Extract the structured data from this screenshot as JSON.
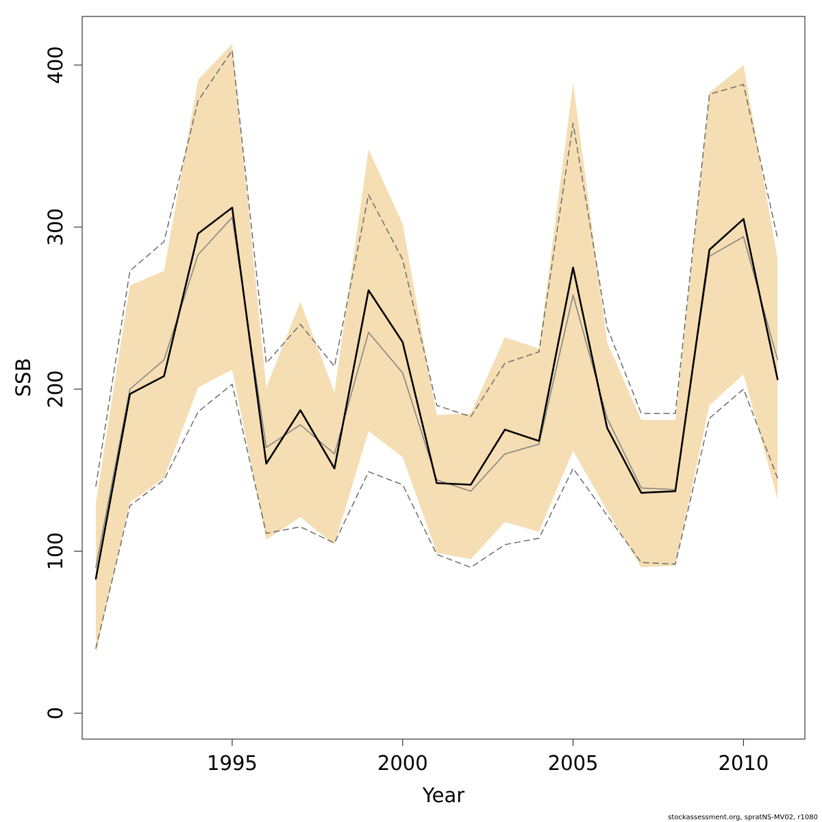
{
  "chart_data": {
    "type": "line",
    "xlabel": "Year",
    "ylabel": "SSB",
    "xlim": [
      1990.6,
      2011.8
    ],
    "ylim": [
      -16,
      430
    ],
    "x_ticks": [
      1995,
      2000,
      2005,
      2010
    ],
    "y_ticks": [
      0,
      100,
      200,
      300,
      400
    ],
    "x_tick_labels": [
      "1995",
      "2000",
      "2005",
      "2010"
    ],
    "y_tick_labels": [
      "0",
      "100",
      "200",
      "300",
      "400"
    ],
    "grid": false,
    "legend": "none",
    "years": [
      1991,
      1992,
      1993,
      1994,
      1995,
      1996,
      1997,
      1998,
      1999,
      2000,
      2001,
      2002,
      2003,
      2004,
      2005,
      2006,
      2007,
      2008,
      2009,
      2010,
      2011
    ],
    "series": [
      {
        "role": "band",
        "style": "filled-area",
        "color": "#f5deb3",
        "upper": [
          130,
          264,
          273,
          391,
          413,
          201,
          254,
          198,
          348,
          302,
          184,
          185,
          232,
          225,
          389,
          229,
          181,
          181,
          383,
          400,
          280
        ],
        "lower": [
          37,
          130,
          145,
          201,
          212,
          107,
          121,
          104,
          174,
          158,
          99,
          95,
          118,
          112,
          162,
          125,
          90,
          91,
          190,
          209,
          132
        ]
      },
      {
        "role": "main",
        "style": "solid-thick",
        "color": "#000000",
        "values": [
          83,
          197,
          208,
          296,
          312,
          154,
          187,
          151,
          261,
          229,
          142,
          141,
          175,
          168,
          275,
          176,
          136,
          137,
          286,
          305,
          206
        ]
      },
      {
        "role": "secondary",
        "style": "solid-thin",
        "color": "#808080",
        "values": [
          90,
          200,
          218,
          283,
          306,
          164,
          178,
          160,
          235,
          210,
          144,
          137,
          160,
          166,
          258,
          182,
          139,
          138,
          282,
          294,
          218
        ]
      },
      {
        "role": "secondary-upper",
        "style": "dashed",
        "color": "#6b6b6b",
        "values": [
          140,
          273,
          291,
          378,
          409,
          216,
          240,
          214,
          320,
          280,
          190,
          183,
          216,
          223,
          364,
          238,
          185,
          185,
          382,
          388,
          293
        ]
      },
      {
        "role": "secondary-lower",
        "style": "dashed",
        "color": "#6b6b6b",
        "values": [
          40,
          128,
          144,
          186,
          203,
          111,
          115,
          105,
          149,
          141,
          98,
          90,
          104,
          108,
          151,
          122,
          93,
          92,
          182,
          200,
          145
        ]
      }
    ],
    "footnote": "stockassessment.org, spratNS-MV02, r1080"
  }
}
